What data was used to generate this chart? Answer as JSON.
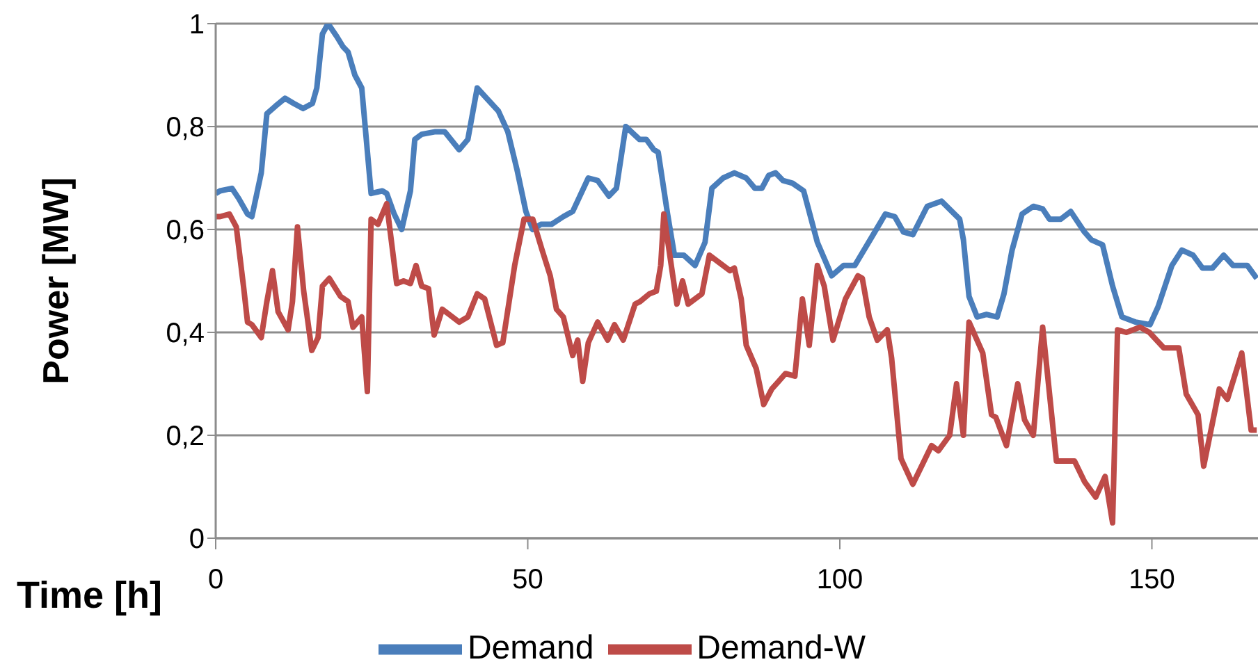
{
  "chart_data": {
    "type": "line",
    "xlabel": "Time [h]",
    "ylabel": "Power [MW]",
    "xlim": [
      0,
      167
    ],
    "xticks": [
      0,
      50,
      100,
      150
    ],
    "ylim": [
      0,
      1
    ],
    "yticks": [
      0,
      {
        "value": 0.2,
        "label": "0,2"
      },
      {
        "value": 0.4,
        "label": "0,4"
      },
      {
        "value": 0.6,
        "label": "0,6"
      },
      {
        "value": 0.8,
        "label": "0,8"
      },
      1
    ],
    "grid": "y",
    "legend": "bottom",
    "marker": "none",
    "line_style": "solid",
    "series": [
      {
        "name": "Demand",
        "color": "#4a7ebb",
        "x": [
          0,
          0.7,
          2.6,
          3.7,
          5.1,
          5.8,
          7.3,
          8.2,
          9.6,
          11.1,
          12.5,
          14,
          15.5,
          16.2,
          17.1,
          18,
          19.4,
          20.4,
          21.2,
          22.3,
          23.4,
          24.9,
          26.7,
          27.4,
          28.6,
          29.8,
          31.2,
          31.9,
          33,
          35.2,
          36.7,
          39,
          40.4,
          41.9,
          43.4,
          45.3,
          46.8,
          48.3,
          49.7,
          50.8,
          52.1,
          53.8,
          55.7,
          57.2,
          59.7,
          61.2,
          63,
          64.2,
          65.7,
          67.9,
          69,
          70.2,
          70.9,
          72.4,
          73.5,
          75,
          76.8,
          78.4,
          79.5,
          81.3,
          83.1,
          85,
          86.4,
          87.5,
          88.6,
          89.7,
          90.9,
          92.4,
          94.2,
          96.4,
          98.7,
          100.6,
          102.4,
          105.1,
          107.3,
          108.8,
          110.2,
          111.7,
          114,
          116.3,
          119.2,
          119.8,
          120.7,
          122,
          123.5,
          125.2,
          126.3,
          127.6,
          129.2,
          131,
          132.5,
          133.6,
          135.4,
          137,
          139.2,
          140.3,
          142.1,
          143.7,
          145.2,
          147.4,
          149.7,
          151,
          153.2,
          154.8,
          156.6,
          158.1,
          159.7,
          161.5,
          163,
          165.3,
          166.8
        ],
        "values": [
          0.67,
          0.675,
          0.68,
          0.66,
          0.63,
          0.625,
          0.71,
          0.825,
          0.84,
          0.855,
          0.845,
          0.835,
          0.845,
          0.875,
          0.98,
          1.0,
          0.975,
          0.955,
          0.945,
          0.9,
          0.875,
          0.67,
          0.675,
          0.67,
          0.63,
          0.6,
          0.675,
          0.775,
          0.785,
          0.79,
          0.79,
          0.755,
          0.775,
          0.875,
          0.855,
          0.83,
          0.79,
          0.715,
          0.635,
          0.6,
          0.61,
          0.61,
          0.625,
          0.635,
          0.7,
          0.695,
          0.665,
          0.68,
          0.8,
          0.775,
          0.775,
          0.755,
          0.75,
          0.63,
          0.55,
          0.55,
          0.53,
          0.575,
          0.68,
          0.7,
          0.71,
          0.7,
          0.68,
          0.68,
          0.705,
          0.71,
          0.695,
          0.69,
          0.675,
          0.575,
          0.51,
          0.53,
          0.53,
          0.585,
          0.63,
          0.625,
          0.595,
          0.59,
          0.645,
          0.655,
          0.62,
          0.58,
          0.47,
          0.43,
          0.435,
          0.43,
          0.475,
          0.56,
          0.63,
          0.645,
          0.64,
          0.62,
          0.62,
          0.635,
          0.595,
          0.58,
          0.57,
          0.49,
          0.43,
          0.42,
          0.415,
          0.45,
          0.53,
          0.56,
          0.55,
          0.525,
          0.525,
          0.55,
          0.53,
          0.53,
          0.505
        ]
      },
      {
        "name": "Demand-W",
        "color": "#be4b48",
        "x": [
          0,
          0.7,
          2.2,
          3.3,
          4.5,
          5.1,
          5.8,
          7.3,
          8.2,
          9.1,
          10,
          11.6,
          12.3,
          13.1,
          14.1,
          15.4,
          16.4,
          17.1,
          18.2,
          20,
          21.2,
          22,
          23.4,
          24.3,
          24.9,
          26,
          27.4,
          29,
          30.1,
          31.2,
          32.1,
          33,
          34.1,
          35,
          36.3,
          37.4,
          39,
          40.4,
          41.9,
          43.1,
          45,
          46,
          47.9,
          49.4,
          50.8,
          52.3,
          53.6,
          54.6,
          55.7,
          57.2,
          58,
          58.8,
          59.7,
          61.2,
          62.8,
          63.9,
          65.3,
          67.2,
          68,
          69.5,
          70.6,
          71.3,
          71.8,
          73.9,
          74.8,
          75.7,
          77.9,
          79.1,
          82.4,
          83.1,
          84.2,
          85,
          86.6,
          87.8,
          89.1,
          90.2,
          91.3,
          92.8,
          94,
          95.1,
          96.4,
          97.5,
          98.9,
          100.9,
          102.9,
          103.6,
          104.7,
          106,
          107.6,
          108.3,
          109.8,
          111.7,
          114.7,
          115.8,
          117.6,
          118.7,
          119.8,
          120.7,
          122.9,
          124.3,
          125,
          126.7,
          128.5,
          129.6,
          131,
          132.5,
          134.7,
          137.6,
          139.2,
          141,
          142.5,
          143.7,
          144.5,
          145.9,
          148.1,
          149.6,
          151.9,
          154.3,
          155.5,
          157.4,
          158.3,
          160.8,
          162.1,
          164.4,
          165.9,
          166.8
        ],
        "values": [
          0.625,
          0.625,
          0.63,
          0.605,
          0.485,
          0.42,
          0.415,
          0.39,
          0.46,
          0.52,
          0.44,
          0.405,
          0.46,
          0.605,
          0.48,
          0.365,
          0.39,
          0.49,
          0.505,
          0.47,
          0.46,
          0.41,
          0.43,
          0.285,
          0.62,
          0.61,
          0.65,
          0.495,
          0.5,
          0.495,
          0.53,
          0.49,
          0.485,
          0.395,
          0.445,
          0.435,
          0.42,
          0.43,
          0.475,
          0.465,
          0.375,
          0.38,
          0.53,
          0.62,
          0.62,
          0.56,
          0.51,
          0.445,
          0.43,
          0.355,
          0.385,
          0.305,
          0.38,
          0.42,
          0.385,
          0.415,
          0.385,
          0.455,
          0.46,
          0.475,
          0.48,
          0.53,
          0.63,
          0.455,
          0.5,
          0.455,
          0.475,
          0.55,
          0.52,
          0.525,
          0.465,
          0.375,
          0.33,
          0.26,
          0.29,
          0.305,
          0.32,
          0.315,
          0.465,
          0.375,
          0.53,
          0.49,
          0.385,
          0.465,
          0.51,
          0.505,
          0.43,
          0.385,
          0.405,
          0.35,
          0.155,
          0.105,
          0.18,
          0.17,
          0.2,
          0.3,
          0.2,
          0.42,
          0.36,
          0.24,
          0.235,
          0.18,
          0.3,
          0.23,
          0.2,
          0.41,
          0.15,
          0.15,
          0.11,
          0.08,
          0.12,
          0.03,
          0.405,
          0.4,
          0.41,
          0.4,
          0.37,
          0.37,
          0.28,
          0.24,
          0.14,
          0.29,
          0.27,
          0.36,
          0.21,
          0.21
        ]
      }
    ]
  }
}
